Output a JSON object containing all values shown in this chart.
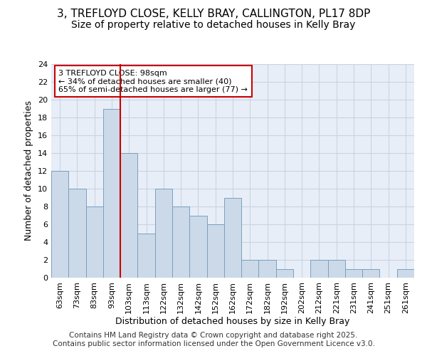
{
  "title1": "3, TREFLOYD CLOSE, KELLY BRAY, CALLINGTON, PL17 8DP",
  "title2": "Size of property relative to detached houses in Kelly Bray",
  "xlabel": "Distribution of detached houses by size in Kelly Bray",
  "ylabel": "Number of detached properties",
  "categories": [
    "63sqm",
    "73sqm",
    "83sqm",
    "93sqm",
    "103sqm",
    "113sqm",
    "122sqm",
    "132sqm",
    "142sqm",
    "152sqm",
    "162sqm",
    "172sqm",
    "182sqm",
    "192sqm",
    "202sqm",
    "212sqm",
    "221sqm",
    "231sqm",
    "241sqm",
    "251sqm",
    "261sqm"
  ],
  "values": [
    12,
    10,
    8,
    19,
    14,
    5,
    10,
    8,
    7,
    6,
    9,
    2,
    2,
    1,
    0,
    2,
    2,
    1,
    1,
    0,
    1
  ],
  "bar_color": "#ccd9e8",
  "bar_edge_color": "#7aa0c0",
  "red_line_index": 3.5,
  "annotation_line1": "3 TREFLOYD CLOSE: 98sqm",
  "annotation_line2": "← 34% of detached houses are smaller (40)",
  "annotation_line3": "65% of semi-detached houses are larger (77) →",
  "annotation_box_color": "white",
  "annotation_box_edge_color": "#cc0000",
  "red_line_color": "#cc0000",
  "ylim": [
    0,
    24
  ],
  "yticks": [
    0,
    2,
    4,
    6,
    8,
    10,
    12,
    14,
    16,
    18,
    20,
    22,
    24
  ],
  "grid_color": "#c8d4e4",
  "background_color": "#e8eef8",
  "footer": "Contains HM Land Registry data © Crown copyright and database right 2025.\nContains public sector information licensed under the Open Government Licence v3.0.",
  "title1_fontsize": 11,
  "title2_fontsize": 10,
  "axis_label_fontsize": 9,
  "tick_fontsize": 8,
  "annotation_fontsize": 8,
  "footer_fontsize": 7.5
}
